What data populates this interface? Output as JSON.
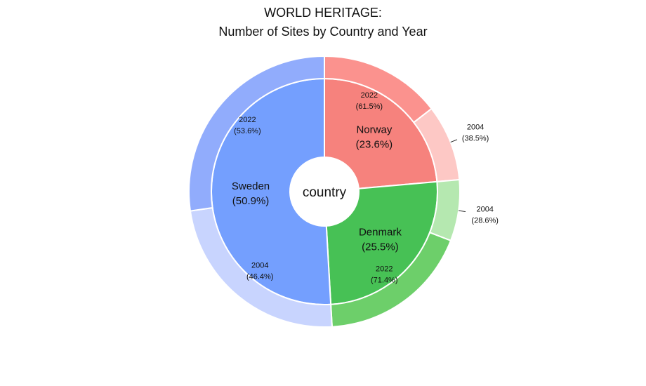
{
  "chart_data": {
    "type": "sunburst",
    "title": "WORLD HERITAGE:",
    "subtitle": "Number of Sites by Country and Year",
    "center_label": "country",
    "countries": [
      {
        "name": "Norway",
        "percent_label": "(23.6%)",
        "share": 0.236,
        "color": "#f6827d",
        "years": [
          {
            "year": "2022",
            "percent_label": "(61.5%)",
            "share": 0.615,
            "color": "#fb928e"
          },
          {
            "year": "2004",
            "percent_label": "(38.5%)",
            "share": 0.385,
            "color": "#fdc8c5"
          }
        ]
      },
      {
        "name": "Denmark",
        "percent_label": "(25.5%)",
        "share": 0.255,
        "color": "#47c155",
        "years": [
          {
            "year": "2004",
            "percent_label": "(28.6%)",
            "share": 0.286,
            "color": "#b5e8b0"
          },
          {
            "year": "2022",
            "percent_label": "(71.4%)",
            "share": 0.714,
            "color": "#6dcf6a"
          }
        ]
      },
      {
        "name": "Sweden",
        "percent_label": "(50.9%)",
        "share": 0.509,
        "color": "#749ffe",
        "years": [
          {
            "year": "2004",
            "percent_label": "(46.4%)",
            "share": 0.464,
            "color": "#c8d4fe"
          },
          {
            "year": "2022",
            "percent_label": "(53.6%)",
            "share": 0.536,
            "color": "#91acfc"
          }
        ]
      }
    ]
  }
}
